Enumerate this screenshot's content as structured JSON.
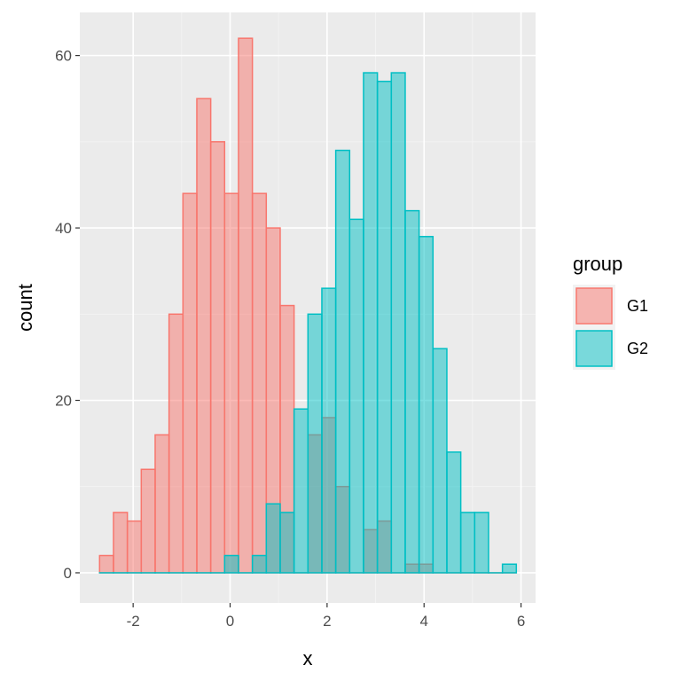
{
  "chart_data": {
    "type": "histogram",
    "xlabel": "x",
    "ylabel": "count",
    "xlim": [
      -3.1,
      6.3
    ],
    "ylim": [
      -3.5,
      65
    ],
    "x_ticks": [
      "-2",
      "0",
      "2",
      "4",
      "6"
    ],
    "y_ticks": [
      "0",
      "20",
      "40",
      "60"
    ],
    "bin_width": 0.2865,
    "bin_start": -2.692,
    "legend": {
      "title": "group",
      "position": "right"
    },
    "grid": true,
    "series": [
      {
        "name": "G1",
        "fill": "#F8766D",
        "counts": [
          2,
          7,
          6,
          12,
          16,
          30,
          44,
          55,
          50,
          44,
          62,
          44,
          40,
          31,
          0,
          16,
          18,
          10,
          0,
          5,
          6,
          0,
          1,
          1,
          0,
          0,
          0,
          0,
          0,
          0
        ]
      },
      {
        "name": "G2",
        "fill": "#00BFC4",
        "counts": [
          0,
          0,
          0,
          0,
          0,
          0,
          0,
          0,
          0,
          2,
          0,
          2,
          8,
          7,
          19,
          30,
          33,
          49,
          41,
          58,
          57,
          58,
          42,
          39,
          26,
          14,
          7,
          7,
          0,
          1
        ]
      }
    ]
  }
}
